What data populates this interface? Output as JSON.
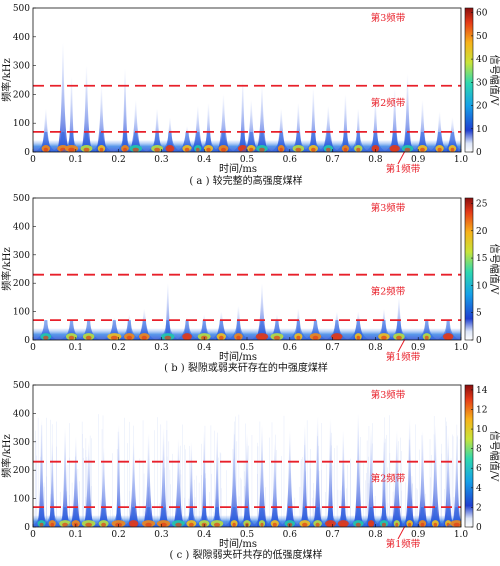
{
  "chart_data": [
    {
      "type": "heatmap",
      "caption": "( a ) 较完整的高强度煤样",
      "xlabel": "时间/ms",
      "ylabel": "频率/kHz",
      "colorbar_label": "信号幅值/V",
      "xlim": [
        0,
        1.0
      ],
      "ylim": [
        0,
        500
      ],
      "xticks": [
        "0",
        "0.1",
        "0.2",
        "0.3",
        "0.4",
        "0.5",
        "0.6",
        "0.7",
        "0.8",
        "0.9",
        "1.0"
      ],
      "yticks": [
        "0",
        "100",
        "200",
        "300",
        "400",
        "500"
      ],
      "colorbar_range": [
        0,
        62
      ],
      "colorbar_ticks": [
        "0",
        "10",
        "20",
        "30",
        "40",
        "50",
        "60"
      ],
      "band_lines_khz": [
        70,
        230
      ],
      "band_labels": [
        "第3频带",
        "第2频带",
        "第1频带"
      ],
      "bursts": [
        {
          "t": 0.03,
          "f": 150
        },
        {
          "t": 0.07,
          "f": 380
        },
        {
          "t": 0.09,
          "f": 260
        },
        {
          "t": 0.125,
          "f": 300
        },
        {
          "t": 0.16,
          "f": 230
        },
        {
          "t": 0.215,
          "f": 290
        },
        {
          "t": 0.24,
          "f": 180
        },
        {
          "t": 0.29,
          "f": 150
        },
        {
          "t": 0.32,
          "f": 120
        },
        {
          "t": 0.36,
          "f": 90
        },
        {
          "t": 0.385,
          "f": 160
        },
        {
          "t": 0.41,
          "f": 170
        },
        {
          "t": 0.445,
          "f": 200
        },
        {
          "t": 0.49,
          "f": 250
        },
        {
          "t": 0.51,
          "f": 180
        },
        {
          "t": 0.535,
          "f": 230
        },
        {
          "t": 0.58,
          "f": 150
        },
        {
          "t": 0.62,
          "f": 170
        },
        {
          "t": 0.655,
          "f": 220
        },
        {
          "t": 0.69,
          "f": 160
        },
        {
          "t": 0.73,
          "f": 200
        },
        {
          "t": 0.76,
          "f": 150
        },
        {
          "t": 0.8,
          "f": 180
        },
        {
          "t": 0.845,
          "f": 220
        },
        {
          "t": 0.875,
          "f": 270
        },
        {
          "t": 0.91,
          "f": 180
        },
        {
          "t": 0.95,
          "f": 140
        },
        {
          "t": 0.98,
          "f": 120
        }
      ]
    },
    {
      "type": "heatmap",
      "caption": "( b ) 裂隙或弱夹矸存在的中强度煤样",
      "xlabel": "时间/ms",
      "ylabel": "频率/kHz",
      "colorbar_label": "信号幅值/V",
      "xlim": [
        0,
        1.0
      ],
      "ylim": [
        0,
        500
      ],
      "xticks": [
        "0",
        "0.1",
        "0.2",
        "0.3",
        "0.4",
        "0.5",
        "0.6",
        "0.7",
        "0.8",
        "0.9",
        "1.0"
      ],
      "yticks": [
        "0",
        "100",
        "200",
        "300",
        "400",
        "500"
      ],
      "colorbar_range": [
        0,
        26
      ],
      "colorbar_ticks": [
        "0",
        "5",
        "10",
        "15",
        "20",
        "25"
      ],
      "band_lines_khz": [
        70,
        230
      ],
      "band_labels": [
        "第3频带",
        "第2频带",
        "第1频带"
      ],
      "bursts": [
        {
          "t": 0.03,
          "f": 60
        },
        {
          "t": 0.09,
          "f": 70
        },
        {
          "t": 0.13,
          "f": 60
        },
        {
          "t": 0.19,
          "f": 80
        },
        {
          "t": 0.225,
          "f": 90
        },
        {
          "t": 0.26,
          "f": 110
        },
        {
          "t": 0.315,
          "f": 200
        },
        {
          "t": 0.36,
          "f": 80
        },
        {
          "t": 0.4,
          "f": 90
        },
        {
          "t": 0.44,
          "f": 100
        },
        {
          "t": 0.48,
          "f": 120
        },
        {
          "t": 0.535,
          "f": 200
        },
        {
          "t": 0.57,
          "f": 90
        },
        {
          "t": 0.62,
          "f": 110
        },
        {
          "t": 0.66,
          "f": 80
        },
        {
          "t": 0.71,
          "f": 100
        },
        {
          "t": 0.76,
          "f": 100
        },
        {
          "t": 0.82,
          "f": 110
        },
        {
          "t": 0.855,
          "f": 150
        },
        {
          "t": 0.92,
          "f": 80
        },
        {
          "t": 0.97,
          "f": 70
        }
      ]
    },
    {
      "type": "heatmap",
      "caption": "( c ) 裂隙弱夹矸共存的低强度煤样",
      "xlabel": "时间/ms",
      "ylabel": "频率/kHz",
      "colorbar_label": "信号幅值/V",
      "xlim": [
        0,
        1.0
      ],
      "ylim": [
        0,
        500
      ],
      "xticks": [
        "0",
        "0.1",
        "0.2",
        "0.3",
        "0.4",
        "0.5",
        "0.6",
        "0.7",
        "0.8",
        "0.9",
        "1.0"
      ],
      "yticks": [
        "0",
        "100",
        "200",
        "300",
        "400",
        "500"
      ],
      "colorbar_range": [
        0,
        14.5
      ],
      "colorbar_ticks": [
        "0",
        "2",
        "4",
        "6",
        "8",
        "10",
        "12",
        "14"
      ],
      "band_lines_khz": [
        70,
        230
      ],
      "band_labels": [
        "第3频带",
        "第2频带",
        "第1频带"
      ],
      "bursts": [
        {
          "t": 0.02,
          "f": 380
        },
        {
          "t": 0.045,
          "f": 300
        },
        {
          "t": 0.075,
          "f": 350
        },
        {
          "t": 0.1,
          "f": 320
        },
        {
          "t": 0.13,
          "f": 300
        },
        {
          "t": 0.165,
          "f": 280
        },
        {
          "t": 0.2,
          "f": 360
        },
        {
          "t": 0.235,
          "f": 300
        },
        {
          "t": 0.27,
          "f": 330
        },
        {
          "t": 0.305,
          "f": 350
        },
        {
          "t": 0.34,
          "f": 310
        },
        {
          "t": 0.37,
          "f": 300
        },
        {
          "t": 0.4,
          "f": 340
        },
        {
          "t": 0.43,
          "f": 320
        },
        {
          "t": 0.47,
          "f": 350
        },
        {
          "t": 0.5,
          "f": 330
        },
        {
          "t": 0.535,
          "f": 360
        },
        {
          "t": 0.565,
          "f": 300
        },
        {
          "t": 0.6,
          "f": 340
        },
        {
          "t": 0.635,
          "f": 360
        },
        {
          "t": 0.665,
          "f": 390
        },
        {
          "t": 0.695,
          "f": 380
        },
        {
          "t": 0.725,
          "f": 340
        },
        {
          "t": 0.76,
          "f": 400
        },
        {
          "t": 0.79,
          "f": 350
        },
        {
          "t": 0.82,
          "f": 320
        },
        {
          "t": 0.85,
          "f": 340
        },
        {
          "t": 0.88,
          "f": 380
        },
        {
          "t": 0.91,
          "f": 340
        },
        {
          "t": 0.94,
          "f": 360
        },
        {
          "t": 0.97,
          "f": 330
        },
        {
          "t": 0.99,
          "f": 300
        }
      ]
    }
  ]
}
